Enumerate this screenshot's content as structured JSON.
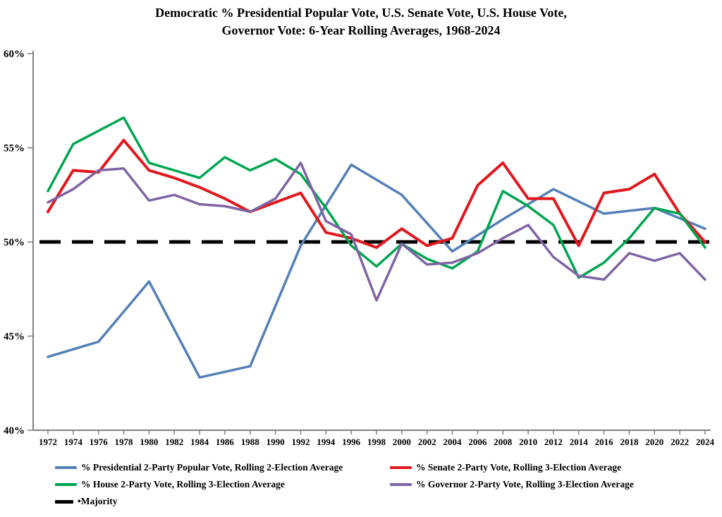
{
  "title": {
    "line1": "Democratic % Presidential Popular Vote, U.S. Senate Vote, U.S. House Vote,",
    "line2": "Governor Vote: 6-Year Rolling Averages, 1968-2024"
  },
  "chart_data": {
    "type": "line",
    "title": "Democratic % Presidential Popular Vote, U.S. Senate Vote, U.S. House Vote, Governor Vote: 6-Year Rolling Averages, 1968-2024",
    "xlabel": "",
    "ylabel": "",
    "ylim": [
      40,
      60
    ],
    "grid": false,
    "legend_position": "bottom",
    "yticks": [
      {
        "value": 60,
        "label": "60%"
      },
      {
        "value": 55,
        "label": "55%"
      },
      {
        "value": 50,
        "label": "50%"
      },
      {
        "value": 45,
        "label": "45%"
      },
      {
        "value": 40,
        "label": "40%"
      }
    ],
    "x_years": [
      1972,
      1974,
      1976,
      1978,
      1980,
      1982,
      1984,
      1986,
      1988,
      1990,
      1992,
      1994,
      1996,
      1998,
      2000,
      2002,
      2004,
      2006,
      2008,
      2010,
      2012,
      2014,
      2016,
      2018,
      2020,
      2022,
      2024
    ],
    "series": [
      {
        "id": "presidential",
        "name": "% Presidential 2-Party Popular Vote, Rolling 2-Election Average",
        "color": "#5380B6",
        "width": 3.5,
        "x": [
          1972,
          1976,
          1980,
          1984,
          1988,
          1992,
          1996,
          2000,
          2004,
          2008,
          2012,
          2016,
          2020,
          2024
        ],
        "values": [
          43.9,
          44.7,
          47.9,
          42.8,
          43.4,
          49.8,
          54.1,
          52.5,
          49.5,
          51.2,
          52.8,
          51.5,
          51.8,
          50.7
        ]
      },
      {
        "id": "senate",
        "name": "% Senate 2-Party Vote, Rolling 3-Election Average",
        "color": "#E0181E",
        "width": 4,
        "x": [
          1972,
          1974,
          1976,
          1978,
          1980,
          1982,
          1984,
          1986,
          1988,
          1990,
          1992,
          1994,
          1996,
          1998,
          2000,
          2002,
          2004,
          2006,
          2008,
          2010,
          2012,
          2014,
          2016,
          2018,
          2020,
          2022,
          2024
        ],
        "values": [
          51.6,
          53.8,
          53.7,
          55.4,
          53.8,
          53.4,
          52.9,
          52.3,
          51.6,
          52.1,
          52.6,
          50.5,
          50.2,
          49.7,
          50.7,
          49.8,
          50.2,
          53.0,
          54.2,
          52.3,
          52.3,
          49.8,
          52.6,
          52.8,
          53.6,
          51.5,
          50.0
        ]
      },
      {
        "id": "house",
        "name": "% House 2-Party Vote, Rolling 3-Election Average",
        "color": "#00A550",
        "width": 3.5,
        "x": [
          1972,
          1974,
          1976,
          1978,
          1980,
          1982,
          1984,
          1986,
          1988,
          1990,
          1992,
          1994,
          1996,
          1998,
          2000,
          2002,
          2004,
          2006,
          2008,
          2010,
          2012,
          2014,
          2016,
          2018,
          2020,
          2022,
          2024
        ],
        "values": [
          52.7,
          55.2,
          55.9,
          56.6,
          54.2,
          53.8,
          53.4,
          54.5,
          53.8,
          54.4,
          53.6,
          51.8,
          49.8,
          48.7,
          49.9,
          49.1,
          48.6,
          49.5,
          52.7,
          51.9,
          50.9,
          48.1,
          48.9,
          50.2,
          51.8,
          51.5,
          49.7
        ]
      },
      {
        "id": "governor",
        "name": "% Governor 2-Party Vote, Rolling 3-Election Average",
        "color": "#7E64A5",
        "width": 3.5,
        "x": [
          1972,
          1974,
          1976,
          1978,
          1980,
          1982,
          1984,
          1986,
          1988,
          1990,
          1992,
          1994,
          1996,
          1998,
          2000,
          2002,
          2004,
          2006,
          2008,
          2010,
          2012,
          2014,
          2016,
          2018,
          2020,
          2022,
          2024
        ],
        "values": [
          52.1,
          52.8,
          53.8,
          53.9,
          52.2,
          52.5,
          52.0,
          51.9,
          51.6,
          52.3,
          54.2,
          51.1,
          50.4,
          46.9,
          49.9,
          48.8,
          48.9,
          49.4,
          50.2,
          50.9,
          49.2,
          48.2,
          48.0,
          49.4,
          49.0,
          49.4,
          48.0
        ]
      }
    ],
    "majority_line": {
      "id": "majority",
      "label": "Majority",
      "bullet": "•",
      "value": 50,
      "color": "#000000"
    },
    "legend_layout": [
      [
        "presidential",
        "senate"
      ],
      [
        "house",
        "governor"
      ],
      [
        "majority"
      ]
    ]
  }
}
